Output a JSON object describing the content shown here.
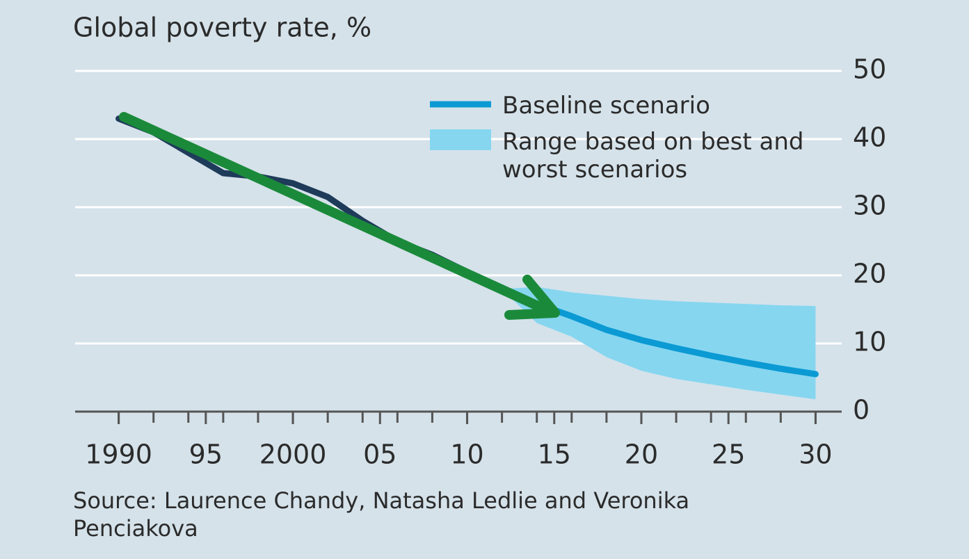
{
  "chart_data": {
    "type": "line",
    "title": "Global poverty rate, %",
    "source": "Source: Laurence Chandy, Natasha Ledlie and Veronika Penciakova",
    "x": [
      1990,
      1992,
      1994,
      1996,
      1998,
      2000,
      2002,
      2004,
      2006,
      2008,
      2010,
      2012,
      2014,
      2016,
      2018,
      2020,
      2022,
      2024,
      2026,
      2028,
      2030
    ],
    "series": [
      {
        "color": "#1f3b5a",
        "values": [
          43,
          41,
          38,
          35,
          34.5,
          33.5,
          31.5,
          28,
          25,
          23,
          20.5,
          null,
          null,
          null,
          null,
          null,
          null,
          null,
          null,
          null,
          null
        ]
      },
      {
        "name": "Baseline scenario",
        "color": "#0b9ad3",
        "values": [
          null,
          null,
          null,
          null,
          null,
          null,
          null,
          null,
          null,
          null,
          20.5,
          18,
          15.8,
          14,
          12,
          10.5,
          9.3,
          8.2,
          7.2,
          6.3,
          5.5
        ]
      },
      {
        "name": "Range based on best and worst scenarios",
        "color": "#86d6f0",
        "low": [
          null,
          null,
          null,
          null,
          null,
          null,
          null,
          null,
          null,
          null,
          null,
          18,
          13,
          11,
          8,
          6,
          4.8,
          4,
          3.2,
          2.5,
          1.8
        ],
        "high": [
          null,
          null,
          null,
          null,
          null,
          null,
          null,
          null,
          null,
          null,
          null,
          18,
          18.3,
          17.5,
          17,
          16.5,
          16.2,
          16,
          15.8,
          15.6,
          15.5
        ]
      }
    ],
    "xlim": [
      1987.5,
      2031.5
    ],
    "xticks": [
      {
        "value": 1990,
        "label": "1990"
      },
      {
        "value": 1995,
        "label": "95"
      },
      {
        "value": 2000,
        "label": "2000"
      },
      {
        "value": 2005,
        "label": "05"
      },
      {
        "value": 2010,
        "label": "10"
      },
      {
        "value": 2015,
        "label": "15"
      },
      {
        "value": 2020,
        "label": "20"
      },
      {
        "value": 2025,
        "label": "25"
      },
      {
        "value": 2030,
        "label": "30"
      }
    ],
    "ylim": [
      0,
      50
    ],
    "yticks": [
      0,
      10,
      20,
      30,
      40,
      50
    ],
    "grid": true,
    "legend": "top-right"
  }
}
